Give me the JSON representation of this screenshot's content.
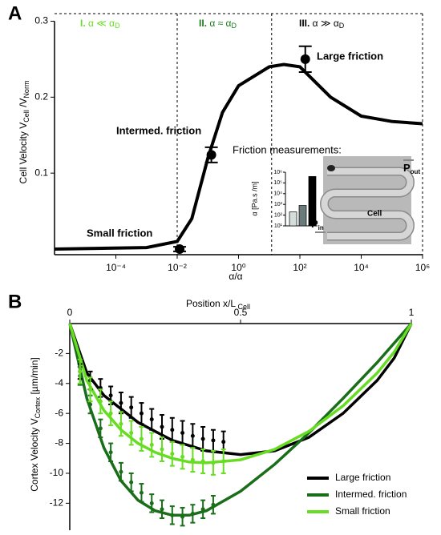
{
  "chart_data": [
    {
      "type": "line",
      "panel": "A",
      "xlabel": "α/α",
      "ylabel": [
        "Cell Velocity  V",
        "Cell",
        " /V",
        "Norm"
      ],
      "xscale": "log",
      "xlim": [
        1e-06,
        1000000
      ],
      "ylim": [
        0,
        0.31
      ],
      "xticks": [
        {
          "value": 0.0001,
          "label": "10⁻⁴"
        },
        {
          "value": 0.01,
          "label": "10⁻²"
        },
        {
          "value": 1,
          "label": "10⁰"
        },
        {
          "value": 100,
          "label": "10²"
        },
        {
          "value": 10000,
          "label": "10⁴"
        },
        {
          "value": 1000000,
          "label": "10⁶"
        }
      ],
      "yticks": [
        0.1,
        0.2,
        0.3
      ],
      "dividers": [
        0.01,
        12
      ],
      "regions": [
        {
          "numeral": "I.",
          "text": " α ≪ α",
          "sub": "D",
          "color": "#66dd22"
        },
        {
          "numeral": "II.",
          "text": " α ≈ α",
          "sub": "D",
          "color": "#1a7a1a"
        },
        {
          "numeral": "III.",
          "text": " α ≫ α",
          "sub": "D",
          "color": "#000000"
        }
      ],
      "color": "#000000",
      "x": [
        1e-06,
        0.001,
        0.01,
        0.03,
        0.1,
        0.3,
        1,
        10,
        30,
        100,
        1000,
        10000,
        100000,
        1000000
      ],
      "values": [
        0,
        0.002,
        0.01,
        0.04,
        0.12,
        0.18,
        0.215,
        0.24,
        0.243,
        0.24,
        0.2,
        0.175,
        0.168,
        0.165
      ],
      "points": {
        "x": [
          0.012,
          0.13,
          150
        ],
        "y": [
          0,
          0.124,
          0.25
        ],
        "err": [
          0.003,
          0.01,
          0.017
        ]
      },
      "annotations": [
        {
          "text": "Small friction",
          "color": "#66dd22"
        },
        {
          "text": "Intermed. friction",
          "color": "#1a7a1a"
        },
        {
          "text": "Large friction",
          "color": "#000000"
        }
      ],
      "inset": {
        "title": "Friction measurements:",
        "ylabel": "α [Pa.s /m]",
        "yscale": "log",
        "ylim": [
          10,
          1000000
        ],
        "yticks": [
          {
            "value": 10,
            "label": "10¹"
          },
          {
            "value": 100,
            "label": "10²"
          },
          {
            "value": 1000,
            "label": "10³"
          },
          {
            "value": 10000,
            "label": "10⁴"
          },
          {
            "value": 100000,
            "label": "10⁵"
          },
          {
            "value": 1000000,
            "label": "10⁶"
          }
        ],
        "values": [
          200,
          800,
          400000
        ],
        "colors": [
          "#d4dcdc",
          "#6b7b7b",
          "#000000"
        ],
        "image_labels": {
          "p": "P",
          "in": "in",
          "out": "out",
          "cell": "Cell"
        }
      }
    },
    {
      "type": "line",
      "panel": "B",
      "xlabel": [
        "Position  x/L",
        " Cell"
      ],
      "ylabel": [
        "Cortex Velocity  V",
        "Cortex",
        " [µm/min]"
      ],
      "xlim": [
        0,
        1
      ],
      "ylim": [
        -13.8,
        0
      ],
      "xticks": [
        0,
        0.5,
        1
      ],
      "yticks": [
        -2,
        -4,
        -6,
        -8,
        -10,
        -12
      ],
      "legend": "lower right",
      "series": [
        {
          "name": "Large friction",
          "color": "#000000",
          "x": [
            0,
            0.05,
            0.1,
            0.2,
            0.3,
            0.4,
            0.5,
            0.6,
            0.7,
            0.8,
            0.9,
            0.95,
            1
          ],
          "values": [
            0,
            -3.3,
            -4.8,
            -6.6,
            -7.8,
            -8.5,
            -8.75,
            -8.5,
            -7.6,
            -6,
            -3.8,
            -2.3,
            0
          ],
          "points_x": [
            0.03,
            0.06,
            0.09,
            0.12,
            0.15,
            0.18,
            0.21,
            0.24,
            0.27,
            0.3,
            0.33,
            0.36,
            0.39,
            0.42,
            0.45
          ],
          "points_y": [
            -3.2,
            -3.8,
            -4.3,
            -4.8,
            -5.3,
            -5.6,
            -6.0,
            -6.4,
            -6.9,
            -7.1,
            -7.3,
            -7.5,
            -7.7,
            -7.8,
            -7.9
          ],
          "points_err": [
            0.5,
            0.6,
            0.6,
            0.6,
            0.7,
            0.7,
            0.7,
            0.7,
            0.8,
            0.8,
            0.8,
            0.8,
            0.8,
            0.7,
            0.7
          ]
        },
        {
          "name": "Intermed. friction",
          "color": "#1a6e1a",
          "x": [
            0,
            0.05,
            0.1,
            0.15,
            0.2,
            0.25,
            0.3,
            0.35,
            0.4,
            0.5,
            0.6,
            0.7,
            0.8,
            0.9,
            1
          ],
          "values": [
            0,
            -5,
            -8.3,
            -10.5,
            -11.8,
            -12.5,
            -12.8,
            -12.8,
            -12.5,
            -11.2,
            -9.4,
            -7.3,
            -5,
            -2.6,
            0
          ],
          "points_x": [
            0.03,
            0.06,
            0.09,
            0.12,
            0.15,
            0.18,
            0.21,
            0.24,
            0.27,
            0.3,
            0.33,
            0.36,
            0.39,
            0.42
          ],
          "points_y": [
            -3.5,
            -5.4,
            -7.0,
            -8.6,
            -9.9,
            -10.6,
            -11.3,
            -12.0,
            -12.4,
            -12.8,
            -12.9,
            -12.7,
            -12.4,
            -12.1
          ],
          "points_err": [
            0.6,
            0.6,
            0.6,
            0.6,
            0.6,
            0.6,
            0.6,
            0.6,
            0.6,
            0.6,
            0.6,
            0.6,
            0.6,
            0.6
          ]
        },
        {
          "name": "Small friction",
          "color": "#66dd22",
          "x": [
            0,
            0.05,
            0.1,
            0.15,
            0.2,
            0.25,
            0.3,
            0.35,
            0.4,
            0.5,
            0.6,
            0.7,
            0.8,
            0.9,
            0.95,
            1
          ],
          "values": [
            0,
            -3.8,
            -5.8,
            -7.1,
            -8,
            -8.6,
            -9,
            -9.25,
            -9.3,
            -9.1,
            -8.4,
            -7.2,
            -5.5,
            -3.3,
            -1.9,
            0
          ],
          "points_x": [
            0.03,
            0.06,
            0.09,
            0.12,
            0.15,
            0.18,
            0.21,
            0.24,
            0.27,
            0.3,
            0.33,
            0.36,
            0.39,
            0.42,
            0.45
          ],
          "points_y": [
            -3.2,
            -4.4,
            -5.2,
            -6.0,
            -6.7,
            -7.3,
            -7.7,
            -8.1,
            -8.4,
            -8.7,
            -8.9,
            -9.1,
            -9.2,
            -9.3,
            -9.2
          ],
          "points_err": [
            0.8,
            0.8,
            0.8,
            0.8,
            0.8,
            0.8,
            0.8,
            0.8,
            0.8,
            0.8,
            0.8,
            0.8,
            0.8,
            0.8,
            0.8
          ]
        }
      ]
    }
  ]
}
